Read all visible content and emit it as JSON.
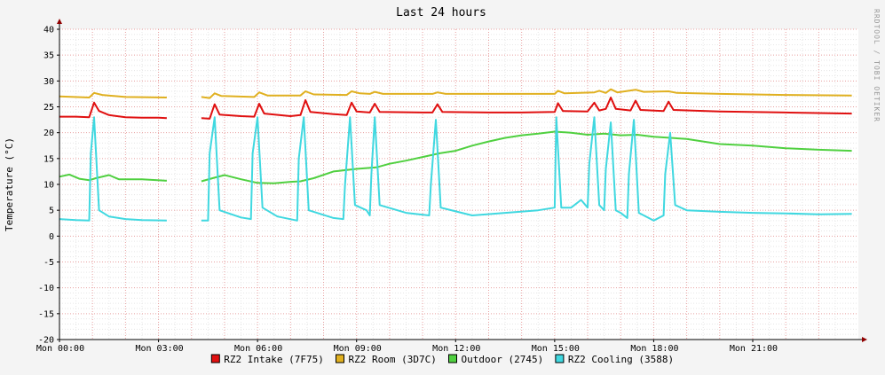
{
  "chart_data": {
    "type": "line",
    "title": "Last 24 hours",
    "ylabel": "Temperature (°C)",
    "watermark": "RRDTOOL / TOBI OETIKER",
    "ylim": [
      -20,
      40
    ],
    "y_ticks": [
      -20,
      -15,
      -10,
      -5,
      0,
      5,
      10,
      15,
      20,
      25,
      30,
      35,
      40
    ],
    "xlim_hours": [
      0,
      24.2
    ],
    "x_ticks": [
      {
        "hour": 0,
        "label": "Mon 00:00"
      },
      {
        "hour": 3,
        "label": "Mon 03:00"
      },
      {
        "hour": 6,
        "label": "Mon 06:00"
      },
      {
        "hour": 9,
        "label": "Mon 09:00"
      },
      {
        "hour": 12,
        "label": "Mon 12:00"
      },
      {
        "hour": 15,
        "label": "Mon 15:00"
      },
      {
        "hour": 18,
        "label": "Mon 18:00"
      },
      {
        "hour": 21,
        "label": "Mon 21:00"
      }
    ],
    "grid": true,
    "legend_position": "bottom",
    "series": [
      {
        "name": "RZ2 Intake (7F75)",
        "color": "#e01010",
        "points": [
          [
            0,
            23.1
          ],
          [
            0.5,
            23.1
          ],
          [
            0.9,
            23.0
          ],
          [
            1.05,
            25.8
          ],
          [
            1.2,
            24.2
          ],
          [
            1.5,
            23.4
          ],
          [
            2.0,
            23.0
          ],
          [
            2.5,
            22.9
          ],
          [
            3.0,
            22.9
          ],
          [
            3.25,
            22.8
          ],
          null,
          [
            4.3,
            22.8
          ],
          [
            4.55,
            22.7
          ],
          [
            4.7,
            25.5
          ],
          [
            4.85,
            23.5
          ],
          [
            5.5,
            23.2
          ],
          [
            5.9,
            23.1
          ],
          [
            6.05,
            25.6
          ],
          [
            6.2,
            23.7
          ],
          [
            7.0,
            23.2
          ],
          [
            7.3,
            23.4
          ],
          [
            7.45,
            26.3
          ],
          [
            7.6,
            24.0
          ],
          [
            8.3,
            23.6
          ],
          [
            8.7,
            23.4
          ],
          [
            8.85,
            25.8
          ],
          [
            9.0,
            24.1
          ],
          [
            9.4,
            23.9
          ],
          [
            9.55,
            25.6
          ],
          [
            9.7,
            24.0
          ],
          [
            11.0,
            23.9
          ],
          [
            11.3,
            23.9
          ],
          [
            11.45,
            25.5
          ],
          [
            11.6,
            24.0
          ],
          [
            13.0,
            23.9
          ],
          [
            14.0,
            23.9
          ],
          [
            15.0,
            24.0
          ],
          [
            15.1,
            25.7
          ],
          [
            15.25,
            24.2
          ],
          [
            16.0,
            24.1
          ],
          [
            16.2,
            25.8
          ],
          [
            16.35,
            24.3
          ],
          [
            16.55,
            24.6
          ],
          [
            16.7,
            26.8
          ],
          [
            16.85,
            24.6
          ],
          [
            17.3,
            24.3
          ],
          [
            17.45,
            26.2
          ],
          [
            17.6,
            24.4
          ],
          [
            18.3,
            24.2
          ],
          [
            18.45,
            26.0
          ],
          [
            18.6,
            24.4
          ],
          [
            20.0,
            24.1
          ],
          [
            22.0,
            23.9
          ],
          [
            24.0,
            23.7
          ]
        ]
      },
      {
        "name": "RZ2 Room (3D7C)",
        "color": "#e0b020",
        "points": [
          [
            0,
            27.0
          ],
          [
            0.9,
            26.8
          ],
          [
            1.05,
            27.7
          ],
          [
            1.3,
            27.3
          ],
          [
            2.0,
            26.9
          ],
          [
            3.25,
            26.8
          ],
          null,
          [
            4.3,
            26.9
          ],
          [
            4.55,
            26.7
          ],
          [
            4.7,
            27.6
          ],
          [
            4.9,
            27.1
          ],
          [
            5.9,
            26.9
          ],
          [
            6.05,
            27.8
          ],
          [
            6.3,
            27.2
          ],
          [
            7.3,
            27.2
          ],
          [
            7.45,
            28.0
          ],
          [
            7.7,
            27.4
          ],
          [
            8.7,
            27.3
          ],
          [
            8.85,
            28.0
          ],
          [
            9.1,
            27.6
          ],
          [
            9.4,
            27.5
          ],
          [
            9.55,
            27.9
          ],
          [
            9.8,
            27.5
          ],
          [
            11.3,
            27.5
          ],
          [
            11.45,
            27.8
          ],
          [
            11.7,
            27.5
          ],
          [
            15.0,
            27.5
          ],
          [
            15.1,
            28.1
          ],
          [
            15.3,
            27.6
          ],
          [
            16.2,
            27.8
          ],
          [
            16.35,
            28.1
          ],
          [
            16.55,
            27.7
          ],
          [
            16.7,
            28.4
          ],
          [
            16.9,
            27.8
          ],
          [
            17.45,
            28.3
          ],
          [
            17.7,
            27.9
          ],
          [
            18.45,
            28.0
          ],
          [
            18.7,
            27.7
          ],
          [
            20.0,
            27.5
          ],
          [
            22.0,
            27.3
          ],
          [
            24.0,
            27.2
          ]
        ]
      },
      {
        "name": "Outdoor (2745)",
        "color": "#50d040",
        "points": [
          [
            0,
            11.5
          ],
          [
            0.3,
            11.9
          ],
          [
            0.6,
            11.1
          ],
          [
            0.9,
            10.8
          ],
          [
            1.1,
            11.2
          ],
          [
            1.5,
            11.8
          ],
          [
            1.8,
            11.0
          ],
          [
            2.5,
            11.0
          ],
          [
            3.25,
            10.7
          ],
          null,
          [
            4.3,
            10.6
          ],
          [
            4.7,
            11.3
          ],
          [
            5.0,
            11.8
          ],
          [
            5.5,
            11.0
          ],
          [
            6.0,
            10.3
          ],
          [
            6.5,
            10.2
          ],
          [
            7.0,
            10.5
          ],
          [
            7.3,
            10.6
          ],
          [
            7.7,
            11.2
          ],
          [
            8.3,
            12.5
          ],
          [
            9.0,
            13.0
          ],
          [
            9.6,
            13.3
          ],
          [
            10.0,
            14.0
          ],
          [
            10.5,
            14.6
          ],
          [
            11.0,
            15.3
          ],
          [
            11.5,
            16.0
          ],
          [
            12.0,
            16.5
          ],
          [
            12.5,
            17.5
          ],
          [
            13.0,
            18.3
          ],
          [
            13.5,
            19.0
          ],
          [
            14.0,
            19.5
          ],
          [
            14.5,
            19.8
          ],
          [
            15.0,
            20.2
          ],
          [
            15.5,
            20.0
          ],
          [
            16.0,
            19.6
          ],
          [
            16.5,
            19.8
          ],
          [
            17.0,
            19.5
          ],
          [
            17.5,
            19.6
          ],
          [
            18.0,
            19.2
          ],
          [
            19.0,
            18.8
          ],
          [
            20.0,
            17.8
          ],
          [
            21.0,
            17.5
          ],
          [
            22.0,
            17.0
          ],
          [
            23.0,
            16.7
          ],
          [
            24.0,
            16.5
          ]
        ]
      },
      {
        "name": "RZ2 Cooling (3588)",
        "color": "#40d8e0",
        "points": [
          [
            0,
            3.3
          ],
          [
            0.5,
            3.1
          ],
          [
            0.9,
            3.0
          ],
          [
            0.95,
            16.0
          ],
          [
            1.05,
            23.0
          ],
          [
            1.2,
            5.0
          ],
          [
            1.5,
            3.8
          ],
          [
            2.0,
            3.3
          ],
          [
            2.5,
            3.1
          ],
          [
            3.25,
            3.0
          ],
          null,
          [
            4.3,
            3.0
          ],
          [
            4.5,
            3.0
          ],
          [
            4.55,
            16.0
          ],
          [
            4.7,
            23.0
          ],
          [
            4.85,
            5.0
          ],
          [
            5.5,
            3.6
          ],
          [
            5.8,
            3.3
          ],
          [
            5.85,
            16.0
          ],
          [
            6.0,
            23.0
          ],
          [
            6.15,
            5.5
          ],
          [
            6.6,
            3.8
          ],
          [
            7.2,
            3.0
          ],
          [
            7.25,
            15.0
          ],
          [
            7.4,
            23.0
          ],
          [
            7.55,
            5.0
          ],
          [
            8.3,
            3.5
          ],
          [
            8.6,
            3.3
          ],
          [
            8.65,
            10.0
          ],
          [
            8.8,
            23.0
          ],
          [
            8.95,
            6.0
          ],
          [
            9.3,
            5.0
          ],
          [
            9.4,
            4.0
          ],
          [
            9.45,
            12.0
          ],
          [
            9.55,
            23.0
          ],
          [
            9.7,
            6.0
          ],
          [
            10.5,
            4.5
          ],
          [
            11.2,
            4.0
          ],
          [
            11.25,
            10.0
          ],
          [
            11.4,
            22.5
          ],
          [
            11.55,
            5.5
          ],
          [
            12.5,
            4.0
          ],
          [
            13.5,
            4.5
          ],
          [
            14.5,
            5.0
          ],
          [
            15.0,
            5.5
          ],
          [
            15.05,
            23.0
          ],
          [
            15.2,
            5.5
          ],
          [
            15.5,
            5.5
          ],
          [
            15.8,
            7.0
          ],
          [
            16.0,
            5.5
          ],
          [
            16.05,
            14.0
          ],
          [
            16.2,
            23.0
          ],
          [
            16.35,
            6.0
          ],
          [
            16.5,
            5.0
          ],
          [
            16.55,
            13.0
          ],
          [
            16.7,
            22.0
          ],
          [
            16.85,
            5.0
          ],
          [
            17.0,
            4.5
          ],
          [
            17.2,
            3.5
          ],
          [
            17.25,
            12.0
          ],
          [
            17.4,
            22.5
          ],
          [
            17.55,
            4.5
          ],
          [
            18.0,
            3.0
          ],
          [
            18.3,
            4.0
          ],
          [
            18.35,
            12.0
          ],
          [
            18.5,
            20.0
          ],
          [
            18.65,
            6.0
          ],
          [
            19.0,
            5.0
          ],
          [
            20.0,
            4.7
          ],
          [
            21.0,
            4.5
          ],
          [
            22.0,
            4.4
          ],
          [
            23.0,
            4.2
          ],
          [
            24.0,
            4.3
          ]
        ]
      }
    ]
  }
}
